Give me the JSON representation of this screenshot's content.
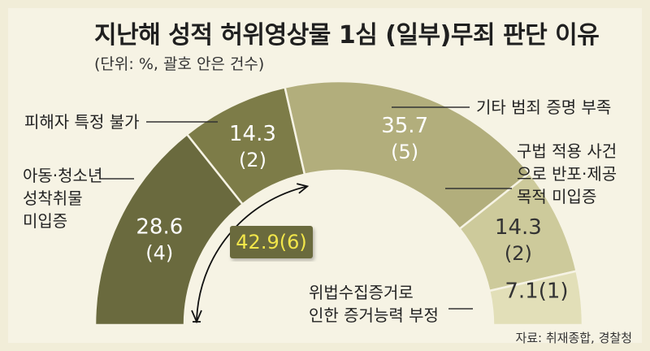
{
  "chart_data": {
    "type": "pie",
    "title": "지난해 성적 허위영상물 1심 (일부)무죄 판단 이유",
    "subtitle": "(단위: %, 괄호 안은 건수)",
    "source": "자료: 취재종합, 경찰청",
    "slices": [
      {
        "label": "아동·청소년 성착취물 미입증",
        "value_label": "28.6",
        "count_label": "(4)",
        "value": 28.6,
        "count": 4,
        "color": "#6a6a3e",
        "text_color": "#ffffff"
      },
      {
        "label": "피해자 특정 불가",
        "value_label": "14.3",
        "count_label": "(2)",
        "value": 14.3,
        "count": 2,
        "color": "#7d7c48",
        "text_color": "#ffffff"
      },
      {
        "label": "기타 범죄 증명 부족",
        "value_label": "35.7",
        "count_label": "(5)",
        "value": 35.7,
        "count": 5,
        "color": "#b2ae7c",
        "text_color": "#ffffff"
      },
      {
        "label": "구법 적용 사건 으로 반포·제공 목적 미입증",
        "value_label": "14.3",
        "count_label": "(2)",
        "value": 14.3,
        "count": 2,
        "color": "#cdca9b",
        "text_color": "#333333"
      },
      {
        "label": "위법수집증거로 인한 증거능력 부정",
        "value_label": "7.1(1)",
        "count_label": "",
        "value": 7.1,
        "count": 1,
        "color": "#e2dfb8",
        "text_color": "#333333"
      }
    ],
    "annotation": {
      "text": "42.9(6)",
      "value": 42.9,
      "count": 6
    },
    "label_lines": {
      "slice1": [
        "아동·청소년",
        "성착취물",
        "미입증"
      ],
      "slice2": [
        "피해자 특정 불가"
      ],
      "slice3": [
        "기타 범죄 증명 부족"
      ],
      "slice4": [
        "구법 적용 사건",
        "으로 반포·제공",
        "목적 미입증"
      ],
      "slice5": [
        "위법수집증거로",
        "인한 증거능력 부정"
      ]
    }
  }
}
